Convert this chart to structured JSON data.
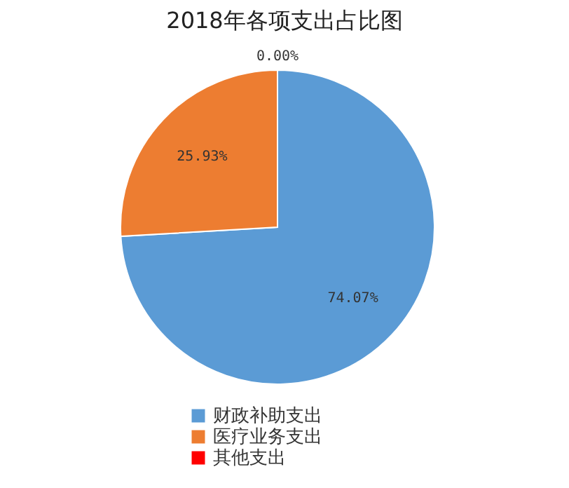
{
  "chart_data": {
    "type": "pie",
    "title": "2018年各项支出占比图",
    "categories": [
      "财政补助支出",
      "医疗业务支出",
      "其他支出"
    ],
    "values": [
      74.07,
      25.93,
      0.0
    ],
    "colors": [
      "#5b9bd5",
      "#ed7d31",
      "#ff0000"
    ],
    "value_labels": [
      "74.07%",
      "25.93%",
      "0.00%"
    ],
    "legend": "bottom"
  }
}
